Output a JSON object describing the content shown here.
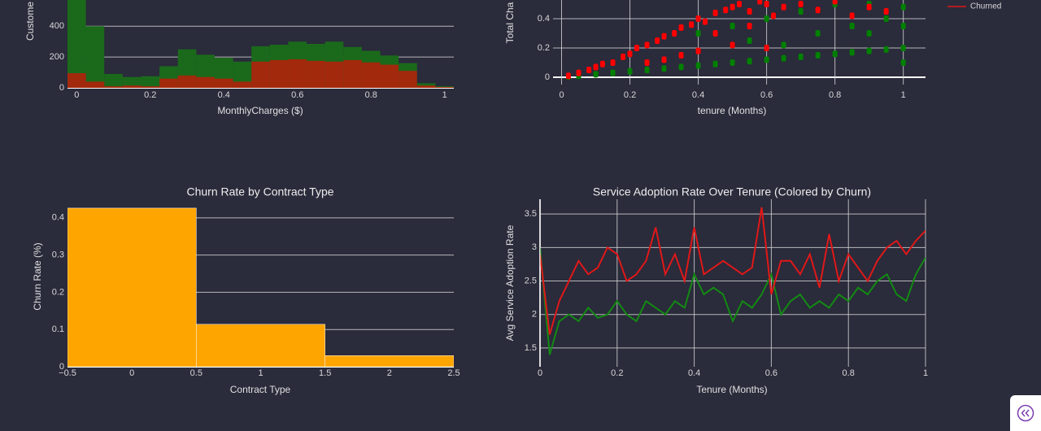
{
  "chart_data": [
    {
      "type": "histogram",
      "xlabel": "MonthlyCharges ($)",
      "ylabel": "Custome",
      "bins": [
        -0.025,
        0.025,
        0.075,
        0.125,
        0.175,
        0.225,
        0.275,
        0.325,
        0.375,
        0.425,
        0.475,
        0.525,
        0.575,
        0.625,
        0.675,
        0.725,
        0.775,
        0.825,
        0.875,
        0.925,
        0.975,
        1.025
      ],
      "series": [
        {
          "color": "#1b6a1b",
          "values": [
            620,
            400,
            90,
            70,
            75,
            140,
            250,
            215,
            195,
            170,
            270,
            280,
            300,
            285,
            300,
            265,
            240,
            210,
            160,
            30,
            10
          ]
        },
        {
          "color": "#a3290c",
          "values": [
            95,
            40,
            10,
            15,
            10,
            60,
            80,
            70,
            60,
            40,
            170,
            180,
            185,
            175,
            170,
            180,
            165,
            150,
            110,
            15,
            5
          ]
        }
      ],
      "xlim": [
        -0.025,
        1.025
      ],
      "ylim": [
        0,
        570
      ],
      "xticks": [
        0,
        0.2,
        0.4,
        0.6,
        0.8,
        1
      ],
      "yticks": [
        0,
        200,
        400
      ],
      "grid": "y"
    },
    {
      "type": "scatter",
      "xlabel": "tenure (Months)",
      "ylabel": "Total Cha",
      "series": [
        {
          "color": "#008000",
          "x": [
            0.02,
            0.05,
            0.1,
            0.15,
            0.2,
            0.25,
            0.3,
            0.35,
            0.4,
            0.45,
            0.5,
            0.55,
            0.6,
            0.65,
            0.7,
            0.75,
            0.8,
            0.85,
            0.9,
            0.95,
            1.0,
            0.4,
            0.5,
            0.6,
            0.7,
            0.8,
            0.9,
            1.0,
            0.75,
            0.85,
            0.95,
            1.0,
            0.55,
            0.65,
            0.9,
            1.0
          ],
          "values": [
            0.005,
            0.01,
            0.02,
            0.03,
            0.04,
            0.05,
            0.06,
            0.07,
            0.08,
            0.09,
            0.1,
            0.11,
            0.12,
            0.13,
            0.14,
            0.15,
            0.16,
            0.17,
            0.18,
            0.19,
            0.2,
            0.3,
            0.35,
            0.4,
            0.45,
            0.5,
            0.5,
            0.48,
            0.3,
            0.35,
            0.4,
            0.35,
            0.25,
            0.22,
            0.3,
            0.1
          ]
        },
        {
          "color": "#ff0000",
          "x": [
            0.02,
            0.05,
            0.08,
            0.1,
            0.12,
            0.15,
            0.18,
            0.2,
            0.22,
            0.25,
            0.28,
            0.3,
            0.33,
            0.35,
            0.38,
            0.4,
            0.42,
            0.45,
            0.48,
            0.5,
            0.52,
            0.55,
            0.58,
            0.6,
            0.62,
            0.65,
            0.7,
            0.75,
            0.8,
            0.85,
            0.9,
            0.95,
            0.3,
            0.4,
            0.5,
            0.6,
            0.45,
            0.55,
            0.25,
            0.35
          ],
          "values": [
            0.01,
            0.03,
            0.05,
            0.07,
            0.09,
            0.1,
            0.14,
            0.16,
            0.2,
            0.22,
            0.25,
            0.28,
            0.3,
            0.34,
            0.36,
            0.4,
            0.38,
            0.44,
            0.46,
            0.48,
            0.5,
            0.45,
            0.52,
            0.5,
            0.42,
            0.48,
            0.5,
            0.46,
            0.52,
            0.42,
            0.48,
            0.45,
            0.12,
            0.18,
            0.22,
            0.2,
            0.3,
            0.35,
            0.1,
            0.15
          ]
        }
      ],
      "xlim": [
        -0.025,
        1.065
      ],
      "ylim": [
        -0.05,
        0.528
      ],
      "xticks": [
        0,
        0.2,
        0.4,
        0.6,
        0.8,
        1
      ],
      "yticks": [
        0,
        0.2,
        0.4
      ],
      "grid": "both"
    },
    {
      "type": "bar",
      "title": "Churn Rate by Contract Type",
      "xlabel": "Contract Type",
      "ylabel": "Churn Rate (%)",
      "x": [
        0,
        1,
        2
      ],
      "values": [
        0.426,
        0.114,
        0.03
      ],
      "color": "#ffa500",
      "xlim": [
        -0.5,
        2.5
      ],
      "ylim": [
        0,
        0.428
      ],
      "xticks": [
        {
          "value": -0.5,
          "label": "−0.5"
        },
        0,
        0.5,
        1,
        1.5,
        2,
        2.5
      ],
      "yticks": [
        0,
        0.1,
        0.2,
        0.3,
        0.4
      ],
      "grid": "y"
    },
    {
      "type": "line",
      "title": "Service Adoption Rate Over Tenure (Colored by Churn)",
      "xlabel": "Tenure (Months)",
      "ylabel": "Avg Service Adoption Rate",
      "x": [
        0,
        0.025,
        0.05,
        0.075,
        0.1,
        0.125,
        0.15,
        0.175,
        0.2,
        0.225,
        0.25,
        0.275,
        0.3,
        0.325,
        0.35,
        0.375,
        0.4,
        0.425,
        0.45,
        0.475,
        0.5,
        0.525,
        0.55,
        0.575,
        0.6,
        0.625,
        0.65,
        0.675,
        0.7,
        0.725,
        0.75,
        0.775,
        0.8,
        0.825,
        0.85,
        0.875,
        0.9,
        0.925,
        0.95,
        0.975,
        1
      ],
      "series": [
        {
          "color": "#138a13",
          "values": [
            3.0,
            1.4,
            1.9,
            2.0,
            1.9,
            2.1,
            1.95,
            2.0,
            2.2,
            2.0,
            1.9,
            2.2,
            2.1,
            2.0,
            2.2,
            2.1,
            2.6,
            2.3,
            2.4,
            2.3,
            1.9,
            2.2,
            2.1,
            2.3,
            2.6,
            2.0,
            2.2,
            2.3,
            2.1,
            2.2,
            2.1,
            2.3,
            2.2,
            2.4,
            2.3,
            2.5,
            2.6,
            2.3,
            2.2,
            2.6,
            2.85
          ]
        },
        {
          "name": "Churned",
          "color": "#e01818",
          "values": [
            2.9,
            1.7,
            2.2,
            2.5,
            2.8,
            2.6,
            2.7,
            3.0,
            2.9,
            2.5,
            2.6,
            2.8,
            3.3,
            2.6,
            2.9,
            2.5,
            3.3,
            2.6,
            2.7,
            2.8,
            2.7,
            2.6,
            2.7,
            3.6,
            2.3,
            2.8,
            2.8,
            2.6,
            2.9,
            2.4,
            3.2,
            2.5,
            2.9,
            2.7,
            2.5,
            2.8,
            3.0,
            3.1,
            2.9,
            3.1,
            3.25
          ]
        }
      ],
      "xlim": [
        0,
        1
      ],
      "ylim": [
        1.22,
        3.72
      ],
      "xticks": [
        0,
        0.2,
        0.4,
        0.6,
        0.8,
        1
      ],
      "yticks": [
        1.5,
        2,
        2.5,
        3,
        3.5
      ],
      "grid": "both",
      "legend": "upper right"
    }
  ]
}
